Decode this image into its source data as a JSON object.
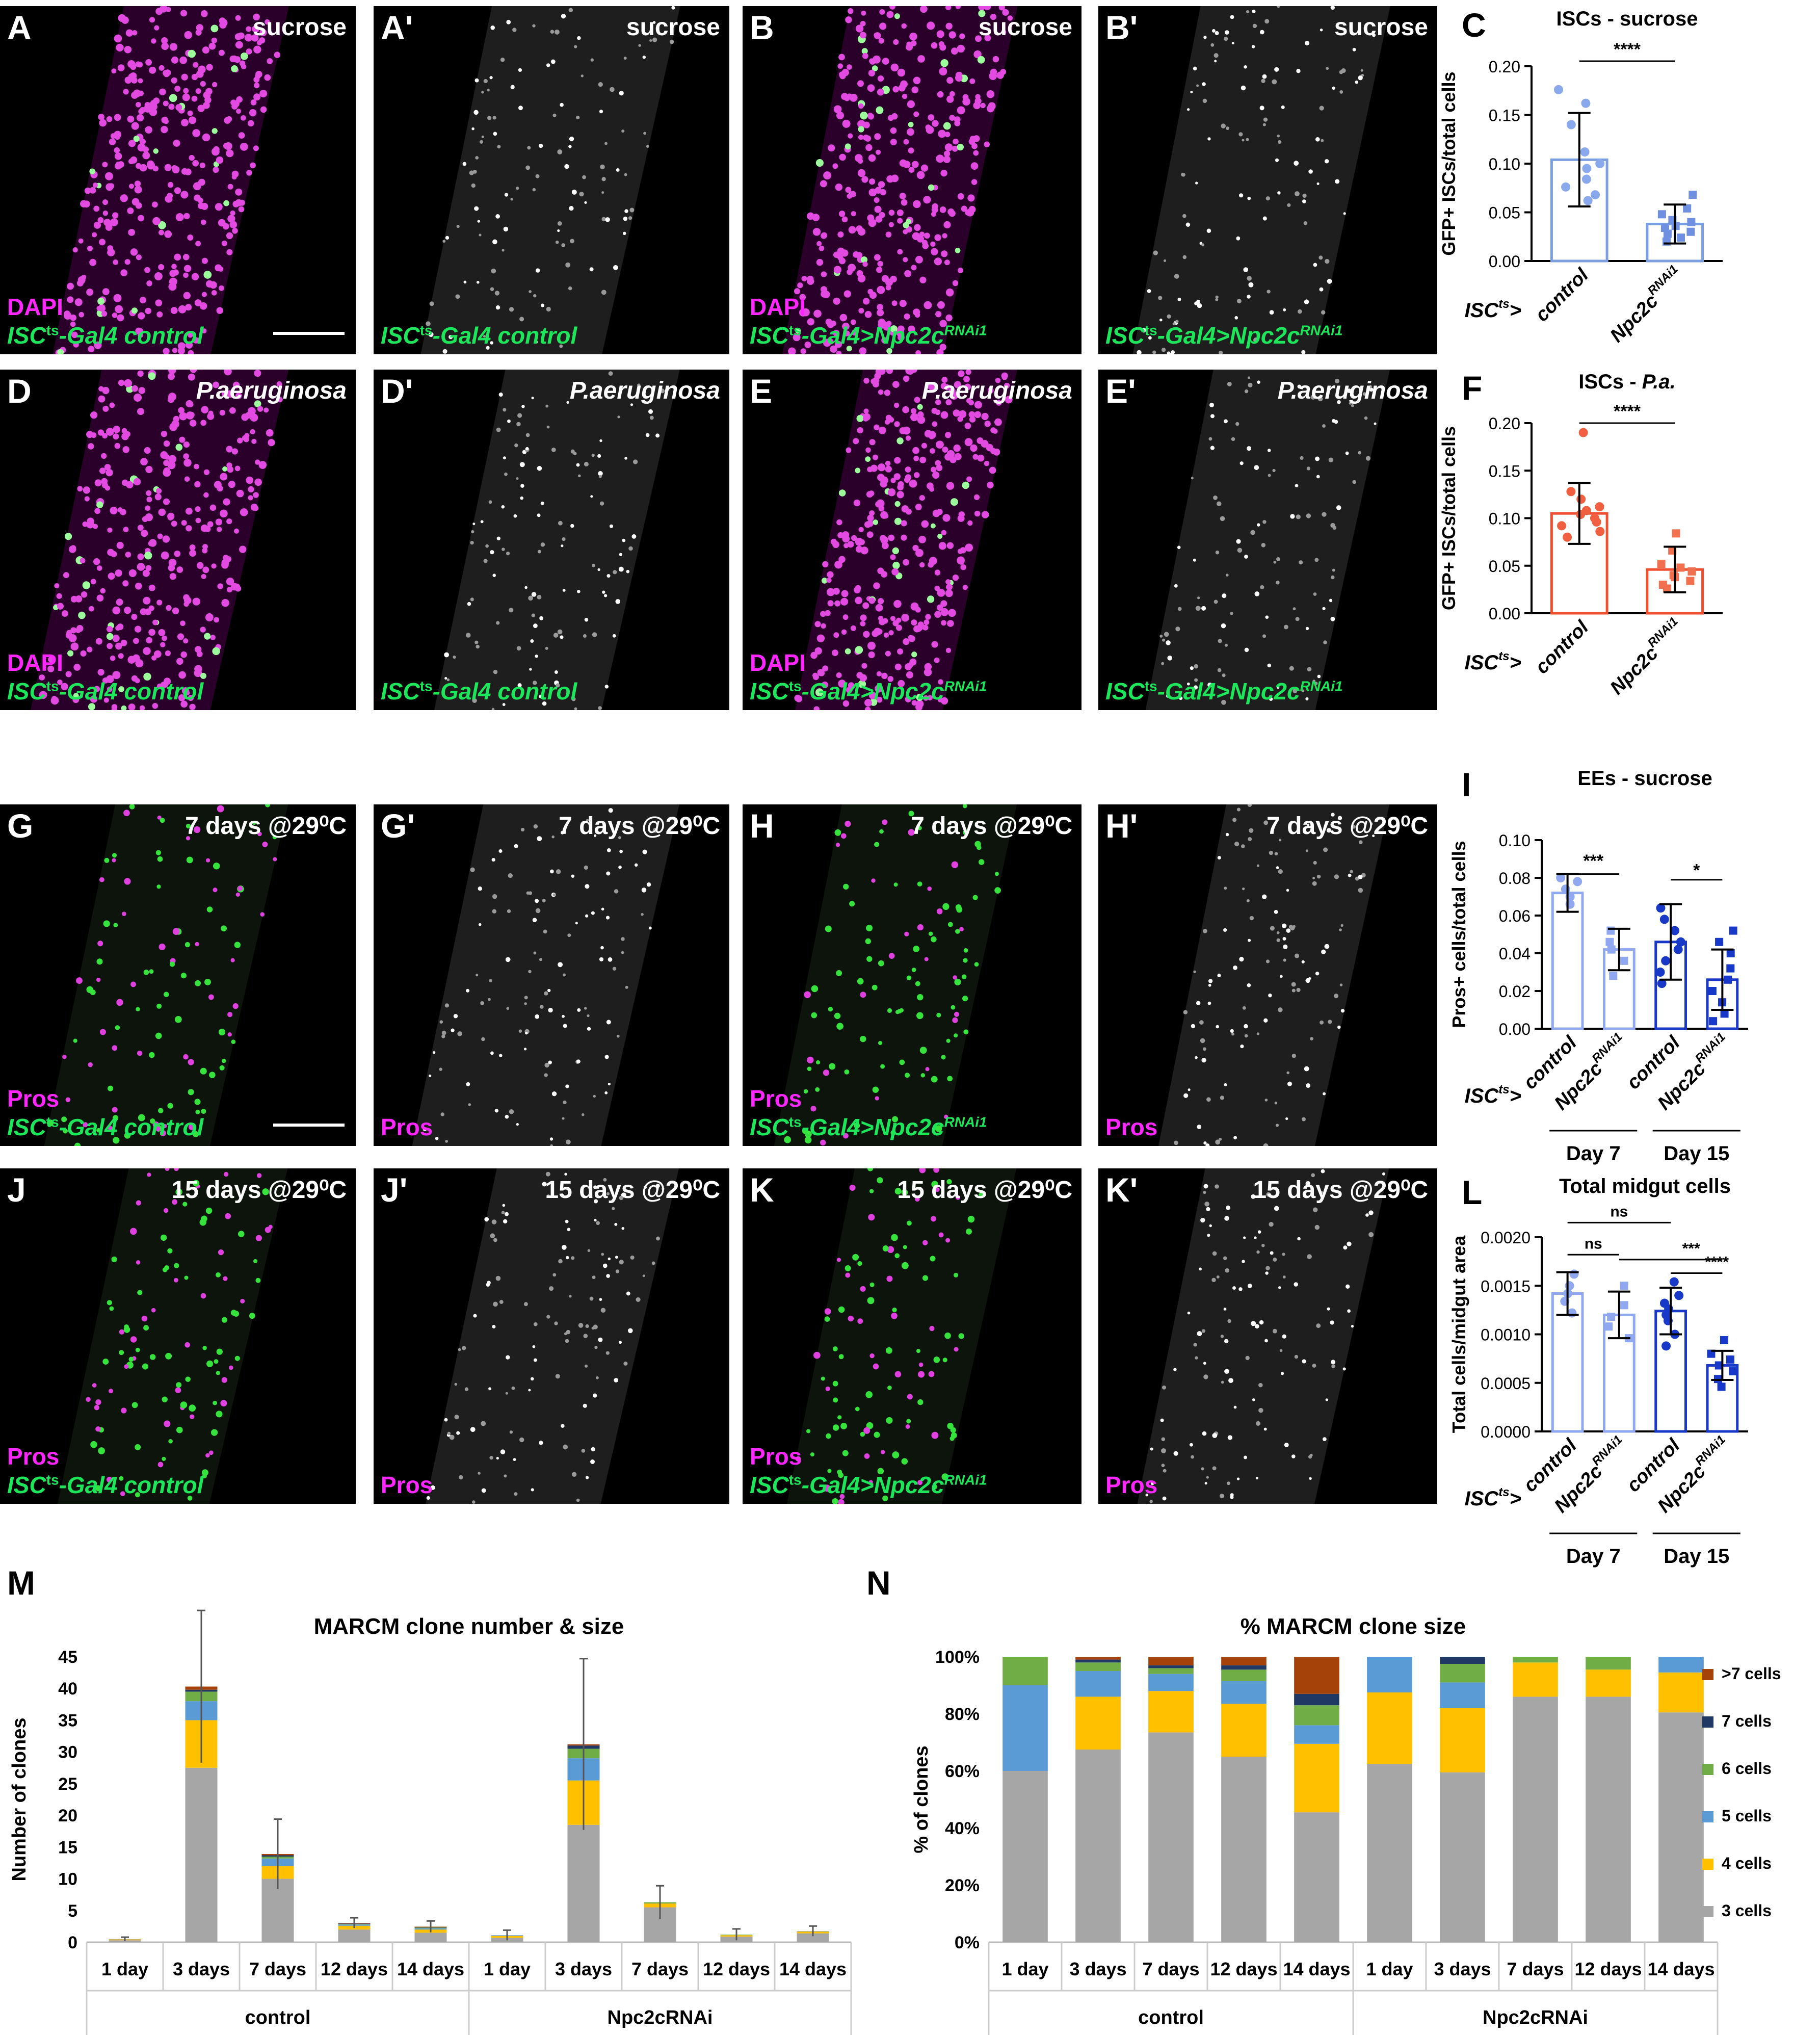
{
  "micro": [
    {
      "id": "A",
      "tag": "sucrose",
      "b1": "DAPI",
      "b2": "ISCts-Gal4 control",
      "b2m": "ISC",
      "b2s": "ts",
      "b2r": "-Gal4 control",
      "b2t": "",
      "kind": "dapi"
    },
    {
      "id": "A'",
      "tag": "sucrose",
      "b2m": "ISC",
      "b2s": "ts",
      "b2r": "-Gal4 control",
      "b2t": "",
      "kind": "grey"
    },
    {
      "id": "B",
      "tag": "sucrose",
      "b1": "DAPI",
      "b2m": "ISC",
      "b2s": "ts",
      "b2r": "-Gal4>Npc2c",
      "b2t": "RNAi1",
      "kind": "dapi"
    },
    {
      "id": "B'",
      "tag": "sucrose",
      "b2m": "ISC",
      "b2s": "ts",
      "b2r": "-Gal4>Npc2c",
      "b2t": "RNAi1",
      "kind": "grey"
    },
    {
      "id": "D",
      "tag": "P.aeruginosa",
      "b1": "DAPI",
      "b2m": "ISC",
      "b2s": "ts",
      "b2r": "-Gal4 control",
      "b2t": "",
      "kind": "dapi"
    },
    {
      "id": "D'",
      "tag": "P.aeruginosa",
      "b2m": "ISC",
      "b2s": "ts",
      "b2r": "-Gal4 control",
      "b2t": "",
      "kind": "grey"
    },
    {
      "id": "E",
      "tag": "P.aeruginosa",
      "b1": "DAPI",
      "b2m": "ISC",
      "b2s": "ts",
      "b2r": "-Gal4>Npc2c",
      "b2t": "RNAi1",
      "kind": "dapi"
    },
    {
      "id": "E'",
      "tag": "P.aeruginosa",
      "b2m": "ISC",
      "b2s": "ts",
      "b2r": "-Gal4>Npc2c",
      "b2t": "RNAi1",
      "kind": "grey"
    },
    {
      "id": "G",
      "tag": "7 days @29⁰C",
      "b1": "Pros",
      "b2m": "ISC",
      "b2s": "ts",
      "b2r": "-Gal4 control",
      "b2t": "",
      "kind": "green"
    },
    {
      "id": "G'",
      "tag": "7 days @29⁰C",
      "b1": "Pros",
      "kind": "grey"
    },
    {
      "id": "H",
      "tag": "7 days @29⁰C",
      "b1": "Pros",
      "b2m": "ISC",
      "b2s": "ts",
      "b2r": "-Gal4>Npc2c",
      "b2t": "RNAi1",
      "kind": "green"
    },
    {
      "id": "H'",
      "tag": "7 days @29⁰C",
      "b1": "Pros",
      "kind": "grey"
    },
    {
      "id": "J",
      "tag": "15 days @29⁰C",
      "b1": "Pros",
      "b2m": "ISC",
      "b2s": "ts",
      "b2r": "-Gal4 control",
      "b2t": "",
      "kind": "green"
    },
    {
      "id": "J'",
      "tag": "15 days @29⁰C",
      "b1": "Pros",
      "kind": "grey"
    },
    {
      "id": "K",
      "tag": "15 days @29⁰C",
      "b1": "Pros",
      "b2m": "ISC",
      "b2s": "ts",
      "b2r": "-Gal4>Npc2c",
      "b2t": "RNAi1",
      "kind": "green"
    },
    {
      "id": "K'",
      "tag": "15 days @29⁰C",
      "b1": "Pros",
      "kind": "grey"
    }
  ],
  "chart_data": [
    {
      "id": "C",
      "type": "bar",
      "title": "ISCs - sucrose",
      "ylabel": "GFP+ ISCs/total cells",
      "ylim": [
        0,
        0.2
      ],
      "ticks": [
        "0.00",
        "0.05",
        "0.10",
        "0.15",
        "0.20"
      ],
      "categories": [
        "control",
        "Npc2c"
      ],
      "cat_sup": [
        "",
        "RNAi1"
      ],
      "values": [
        0.104,
        0.038
      ],
      "err": [
        0.048,
        0.02
      ],
      "signif": "****",
      "genotype_label": "ISC",
      "genotype_sup": "ts",
      "genotype_end": ">",
      "points": [
        [
          0.176,
          0.162,
          0.14,
          0.112,
          0.1,
          0.095,
          0.084,
          0.076,
          0.068,
          0.062
        ],
        [
          0.068,
          0.054,
          0.048,
          0.042,
          0.04,
          0.036,
          0.034,
          0.03,
          0.028,
          0.024,
          0.02
        ]
      ]
    },
    {
      "id": "F",
      "type": "bar",
      "title_pre": "ISCs - ",
      "title_it": "P.a.",
      "ylabel": "GFP+ ISCs/total cells",
      "ylim": [
        0,
        0.2
      ],
      "ticks": [
        "0.00",
        "0.05",
        "0.10",
        "0.15",
        "0.20"
      ],
      "categories": [
        "control",
        "Npc2c"
      ],
      "cat_sup": [
        "",
        "RNAi1"
      ],
      "values": [
        0.105,
        0.046
      ],
      "err": [
        0.032,
        0.024
      ],
      "signif": "****",
      "genotype_label": "ISC",
      "genotype_sup": "ts",
      "genotype_end": ">",
      "points": [
        [
          0.19,
          0.128,
          0.12,
          0.112,
          0.108,
          0.104,
          0.1,
          0.096,
          0.092,
          0.086,
          0.08
        ],
        [
          0.084,
          0.066,
          0.052,
          0.048,
          0.044,
          0.04,
          0.038,
          0.034,
          0.03,
          0.026
        ]
      ]
    },
    {
      "id": "I",
      "type": "bar",
      "title": "EEs - sucrose",
      "ylabel": "Pros+ cells/total cells",
      "ylim": [
        0,
        0.1
      ],
      "ticks": [
        "0.00",
        "0.02",
        "0.04",
        "0.06",
        "0.08",
        "0.10"
      ],
      "categories": [
        "control",
        "Npc2c",
        "control",
        "Npc2c"
      ],
      "cat_sup": [
        "",
        "RNAi1",
        "",
        "RNAi1"
      ],
      "values": [
        0.072,
        0.042,
        0.046,
        0.026
      ],
      "err": [
        0.01,
        0.011,
        0.02,
        0.016
      ],
      "groups": [
        "Day 7",
        "Day 15"
      ],
      "signif": [
        "***",
        "*"
      ],
      "genotype_label": "ISC",
      "genotype_sup": "ts",
      "genotype_end": ">",
      "points": [
        [
          0.08,
          0.078,
          0.074,
          0.07,
          0.066
        ],
        [
          0.052,
          0.046,
          0.042,
          0.036,
          0.028
        ],
        [
          0.064,
          0.058,
          0.052,
          0.046,
          0.042,
          0.036,
          0.03,
          0.024
        ],
        [
          0.052,
          0.046,
          0.04,
          0.032,
          0.026,
          0.02,
          0.014,
          0.008,
          0.004
        ]
      ]
    },
    {
      "id": "L",
      "type": "bar",
      "title": "Total midgut cells",
      "ylabel": "Total cells/midgut area",
      "ylim": [
        0,
        0.002
      ],
      "ticks": [
        "0.0000",
        "0.0005",
        "0.0010",
        "0.0015",
        "0.0020"
      ],
      "categories": [
        "control",
        "Npc2c",
        "control",
        "Npc2c"
      ],
      "cat_sup": [
        "",
        "RNAi1",
        "",
        "RNAi1"
      ],
      "values": [
        0.00142,
        0.0012,
        0.00124,
        0.00068
      ],
      "err": [
        0.00022,
        0.00024,
        0.00024,
        0.00015
      ],
      "groups": [
        "Day 7",
        "Day 15"
      ],
      "signif_top": [
        "ns",
        "ns",
        "***",
        "****"
      ],
      "genotype_label": "ISC",
      "genotype_sup": "ts",
      "genotype_end": ">",
      "points": [
        [
          0.00162,
          0.0015,
          0.00142,
          0.00134,
          0.00122
        ],
        [
          0.0015,
          0.0013,
          0.00118,
          0.00108,
          0.00096
        ],
        [
          0.00154,
          0.0014,
          0.00132,
          0.00126,
          0.0012,
          0.00114,
          0.001,
          0.00088
        ],
        [
          0.00094,
          0.0008,
          0.00074,
          0.00068,
          0.00062,
          0.00054,
          0.00046
        ]
      ]
    },
    {
      "id": "M",
      "type": "stacked-bar",
      "title": "MARCM clone number & size",
      "ylabel": "Number of clones",
      "ylim": [
        0,
        45
      ],
      "ticks": [
        "0",
        "5",
        "10",
        "15",
        "20",
        "25",
        "30",
        "35",
        "40",
        "45"
      ],
      "categories": [
        "1 day",
        "3 days",
        "7 days",
        "12 days",
        "14 days",
        "1 day",
        "3 days",
        "7 days",
        "12 days",
        "14 days"
      ],
      "groups": [
        "control",
        "Npc2cRNAi"
      ],
      "series": [
        {
          "name": "3 cells",
          "color": "#a6a6a6",
          "values": [
            0.3,
            27.5,
            10.0,
            2.0,
            1.5,
            0.7,
            18.5,
            5.5,
            0.9,
            1.4
          ]
        },
        {
          "name": "4 cells",
          "color": "#ffc000",
          "values": [
            0.15,
            7.5,
            2.0,
            0.6,
            0.5,
            0.3,
            7.0,
            0.6,
            0.2,
            0.3
          ]
        },
        {
          "name": "5 cells",
          "color": "#5b9bd5",
          "values": [
            0.05,
            3.0,
            1.2,
            0.2,
            0.2,
            0.1,
            3.5,
            0.0,
            0.0,
            0.05
          ]
        },
        {
          "name": "6 cells",
          "color": "#70ad47",
          "values": [
            0.0,
            1.5,
            0.3,
            0.1,
            0.1,
            0.0,
            1.5,
            0.2,
            0.1,
            0.0
          ]
        },
        {
          "name": "7 cells",
          "color": "#1f3864",
          "values": [
            0.0,
            0.3,
            0.2,
            0.05,
            0.05,
            0.0,
            0.5,
            0.0,
            0.0,
            0.0
          ]
        },
        {
          "name": ">7 cells",
          "color": "#a5420a",
          "values": [
            0.0,
            0.5,
            0.2,
            0.1,
            0.1,
            0.0,
            0.2,
            0.0,
            0.0,
            0.0
          ]
        }
      ],
      "err": [
        0.3,
        12.0,
        5.5,
        0.8,
        0.9,
        0.8,
        13.5,
        2.6,
        0.9,
        0.8
      ]
    },
    {
      "id": "N",
      "type": "stacked-bar",
      "title": "% MARCM clone size",
      "ylabel": "% of clones",
      "ylim": [
        0,
        100
      ],
      "ticks": [
        "0%",
        "20%",
        "40%",
        "60%",
        "80%",
        "100%"
      ],
      "categories": [
        "1 day",
        "3 days",
        "7 days",
        "12 days",
        "14 days",
        "1 day",
        "3 days",
        "7 days",
        "12 days",
        "14 days"
      ],
      "groups": [
        "control",
        "Npc2cRNAi"
      ],
      "series": [
        {
          "name": "3 cells",
          "color": "#a6a6a6",
          "values": [
            60,
            67.5,
            73.5,
            65,
            45.5,
            62.5,
            59.5,
            86,
            86,
            80.5
          ]
        },
        {
          "name": "4 cells",
          "color": "#ffc000",
          "values": [
            0,
            18.5,
            14.5,
            18.5,
            24,
            25,
            22.5,
            12,
            9.5,
            14
          ]
        },
        {
          "name": "5 cells",
          "color": "#5b9bd5",
          "values": [
            30,
            9,
            6,
            8,
            6.5,
            12.5,
            9,
            0,
            0,
            5.5
          ]
        },
        {
          "name": "6 cells",
          "color": "#70ad47",
          "values": [
            10,
            3,
            2,
            4,
            7,
            0,
            6.5,
            2,
            4.5,
            0
          ]
        },
        {
          "name": "7 cells",
          "color": "#1f3864",
          "values": [
            0,
            1,
            1,
            1.5,
            4,
            0,
            2.5,
            0,
            0,
            0
          ]
        },
        {
          "name": ">7 cells",
          "color": "#a5420a",
          "values": [
            0,
            1,
            3,
            3,
            13,
            0,
            0,
            0,
            0,
            0
          ]
        }
      ]
    }
  ],
  "legendN": [
    ">7 cells",
    "7 cells",
    "6 cells",
    "5 cells",
    "4 cells",
    "3 cells"
  ],
  "labels": {
    "M": "M",
    "N": "N"
  }
}
